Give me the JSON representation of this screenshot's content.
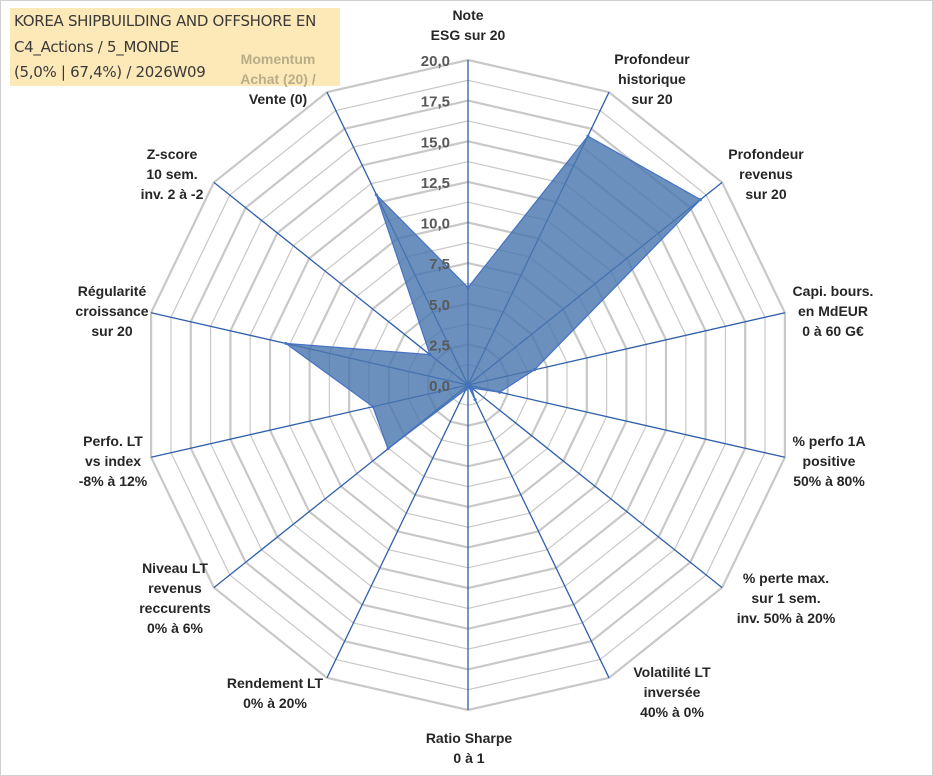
{
  "title": {
    "line1": "KOREA SHIPBUILDING AND OFFSHORE EN",
    "line2": "C4_Actions / 5_MONDE",
    "line3": "(5,0% | 67,4%) / 2026W09"
  },
  "chart_data": {
    "type": "radar",
    "rmax": 20,
    "ticks": [
      "0,0",
      "2,5",
      "5,0",
      "7,5",
      "10,0",
      "12,5",
      "15,0",
      "17,5",
      "20,0"
    ],
    "axes": [
      {
        "label": [
          "Note",
          "ESG sur 20"
        ],
        "value": 6.0
      },
      {
        "label": [
          "Profondeur",
          "historique",
          "sur 20"
        ],
        "value": 17.0
      },
      {
        "label": [
          "Profondeur",
          "revenus",
          "sur 20"
        ],
        "value": 18.3
      },
      {
        "label": [
          "Capi. bours.",
          "en MdEUR",
          "0 à 60 G€"
        ],
        "value": 4.2
      },
      {
        "label": [
          "% perfo 1A",
          "positive",
          "50% à 80%"
        ],
        "value": 2.0
      },
      {
        "label": [
          "% perte max.",
          "sur 1 sem.",
          "inv. 50% à 20%"
        ],
        "value": 0.3
      },
      {
        "label": [
          "Volatilité LT",
          "inversée",
          "40% à 0%"
        ],
        "value": 1.0
      },
      {
        "label": [
          "Ratio Sharpe",
          "0 à 1"
        ],
        "value": 0.0
      },
      {
        "label": [
          "Rendement LT",
          "0% à 20%"
        ],
        "value": 0.3
      },
      {
        "label": [
          "Niveau LT",
          "revenus",
          "reccurents",
          "0% à 6%"
        ],
        "value": 6.3
      },
      {
        "label": [
          "Perfo. LT",
          "vs index",
          "-8% à 12%"
        ],
        "value": 6.0
      },
      {
        "label": [
          "Régularité",
          "croissance",
          "sur 20"
        ],
        "value": 11.5
      },
      {
        "label": [
          "Z-score",
          "10 sem.",
          "inv. 2 à -2"
        ],
        "value": 3.0
      },
      {
        "label": [
          "Momentum",
          "Achat (20) /",
          "Vente (0)"
        ],
        "value": 13.0
      }
    ],
    "colors": {
      "fill": "#4a77b0",
      "stroke": "#4472c4",
      "grid": "#c8c8c8",
      "spoke": "#2f5fa8",
      "faded_label": "#b9ad8a"
    }
  }
}
